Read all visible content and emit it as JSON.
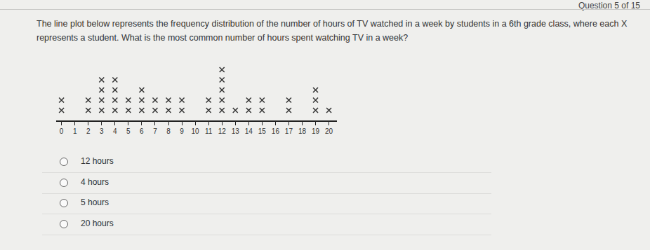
{
  "header": {
    "question_number": "Question 5 of 15"
  },
  "question": "The line plot below represents the frequency distribution of the number of hours of TV watched in a week by students in a 6th grade class, where each X represents a student. What is the most common number of hours spent watching TV in a week?",
  "chart_data": {
    "type": "dot",
    "x": [
      0,
      1,
      2,
      3,
      4,
      5,
      6,
      7,
      8,
      9,
      10,
      11,
      12,
      13,
      14,
      15,
      16,
      17,
      18,
      19,
      20
    ],
    "values": [
      2,
      0,
      2,
      4,
      4,
      2,
      3,
      2,
      2,
      2,
      0,
      2,
      5,
      1,
      2,
      2,
      0,
      2,
      0,
      3,
      1
    ],
    "xlim": [
      -0.4,
      20.6
    ],
    "xticks": [
      0,
      1,
      2,
      3,
      4,
      5,
      6,
      7,
      8,
      9,
      10,
      11,
      12,
      13,
      14,
      15,
      16,
      17,
      18,
      19,
      20
    ],
    "ylim": [
      0,
      6
    ],
    "yticks": [],
    "tick_labels": "x",
    "marker": "x",
    "color": "#333333"
  },
  "options": [
    "12 hours",
    "4 hours",
    "5 hours",
    "20 hours"
  ]
}
